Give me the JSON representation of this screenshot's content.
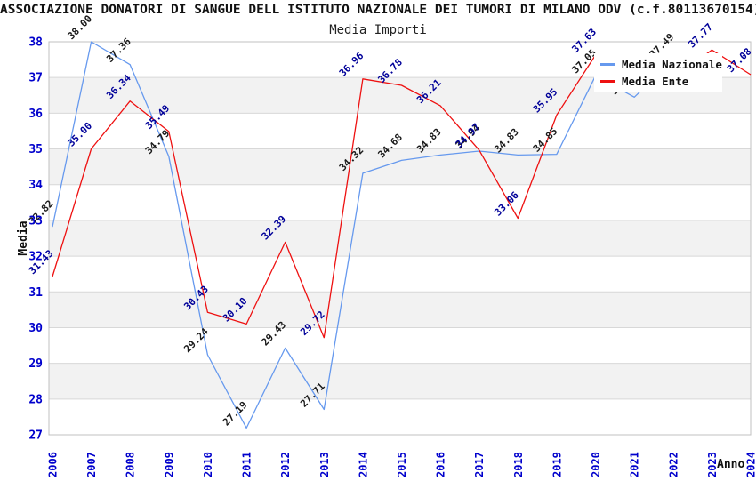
{
  "title": "ASSOCIAZIONE DONATORI DI SANGUE DELL ISTITUTO NAZIONALE DEI TUMORI DI MILANO ODV (c.f.80113670154)",
  "subtitle": "Media Importi",
  "axes": {
    "y_title": "Media",
    "x_title": "Anno",
    "y_ticks": [
      "38",
      "37",
      "36",
      "35",
      "34",
      "33",
      "32",
      "31",
      "30",
      "29",
      "28",
      "27"
    ],
    "x_ticks": [
      "2006",
      "2007",
      "2008",
      "2009",
      "2010",
      "2011",
      "2012",
      "2013",
      "2014",
      "2015",
      "2016",
      "2017",
      "2018",
      "2019",
      "2020",
      "2021",
      "2022",
      "2023",
      "2024"
    ],
    "tick_color": "#0000cc",
    "axis_title_color": "#111111"
  },
  "legend": {
    "items": [
      {
        "label": "Media Nazionale",
        "color": "#6699ee"
      },
      {
        "label": "Media Ente",
        "color": "#ee1111"
      }
    ]
  },
  "colors": {
    "band": "#f2f2f2",
    "grid": "#d8d8d8",
    "frame": "#c0c0c0"
  },
  "chart_data": {
    "type": "line",
    "x": [
      2006,
      2007,
      2008,
      2009,
      2010,
      2011,
      2012,
      2013,
      2014,
      2015,
      2016,
      2017,
      2018,
      2019,
      2020,
      2021,
      2022,
      2023,
      2024
    ],
    "ylim": [
      27,
      38
    ],
    "grid": "alternating-bands",
    "legend_position": "top-right-overlay",
    "series": [
      {
        "name": "Media Nazionale",
        "color": "#6699ee",
        "label_color": "#1a1a1a",
        "values": [
          32.82,
          38.0,
          37.36,
          34.79,
          29.24,
          27.19,
          29.43,
          27.71,
          34.32,
          34.68,
          34.83,
          34.94,
          34.83,
          34.85,
          37.05,
          36.45,
          37.49,
          null,
          null
        ],
        "labels": [
          "32.82",
          "38.00",
          "37.36",
          "34.79",
          "29.24",
          "27.19",
          "29.43",
          "27.71",
          "34.32",
          "34.68",
          "34.83",
          "34.94",
          "34.83",
          "34.85",
          "37.05",
          "36.45",
          "37.49",
          "",
          ""
        ]
      },
      {
        "name": "Media Ente",
        "color": "#ee1111",
        "label_color": "#000099",
        "values": [
          31.43,
          35.0,
          36.34,
          35.49,
          30.43,
          30.1,
          32.39,
          29.72,
          36.96,
          36.78,
          36.21,
          34.97,
          33.06,
          35.95,
          37.63,
          37.0,
          36.95,
          37.77,
          37.08
        ],
        "labels": [
          "31.43",
          "35.00",
          "36.34",
          "35.49",
          "30.43",
          "30.10",
          "32.39",
          "29.72",
          "36.96",
          "36.78",
          "36.21",
          "34.97",
          "33.06",
          "35.95",
          "37.63",
          "",
          "",
          "37.77",
          "37.08"
        ]
      }
    ]
  }
}
